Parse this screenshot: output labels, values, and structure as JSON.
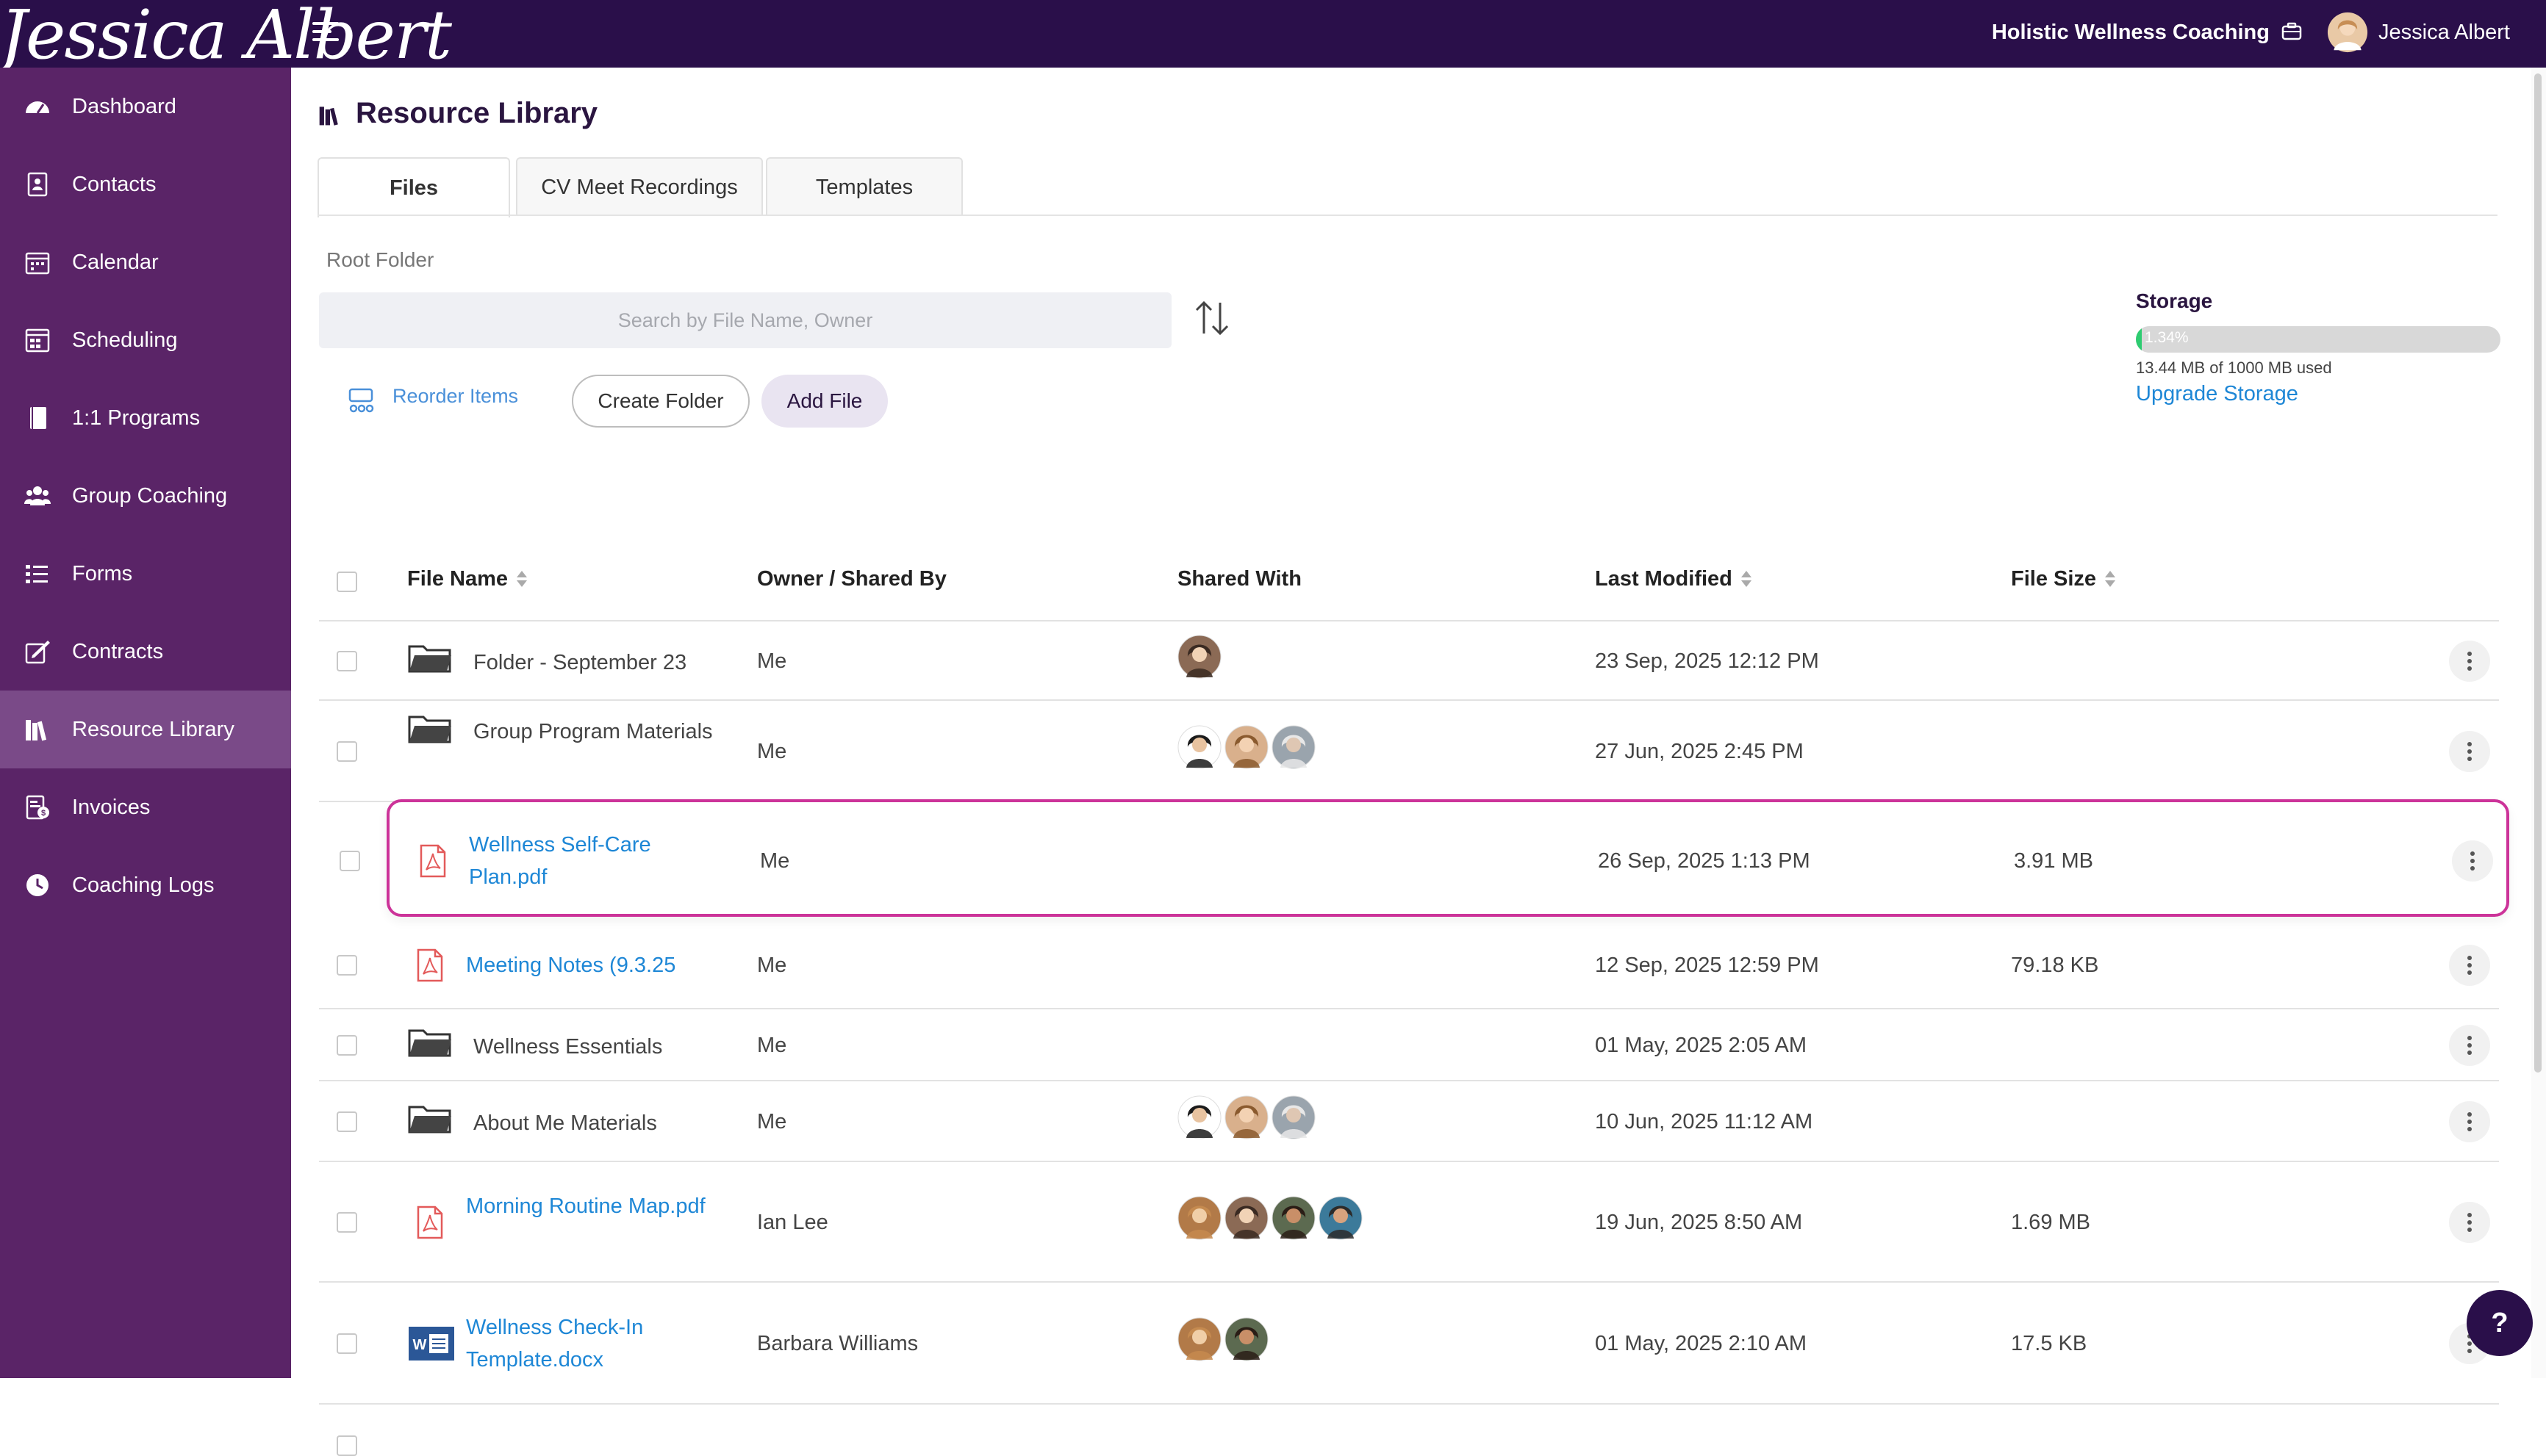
{
  "brand": {
    "name": "Jessica Albert"
  },
  "header": {
    "business": "Holistic Wellness Coaching",
    "user_name": "Jessica Albert"
  },
  "sidebar": {
    "items": [
      {
        "label": "Dashboard",
        "icon": "gauge-icon"
      },
      {
        "label": "Contacts",
        "icon": "contacts-icon"
      },
      {
        "label": "Calendar",
        "icon": "calendar-icon"
      },
      {
        "label": "Scheduling",
        "icon": "scheduling-icon"
      },
      {
        "label": "1:1 Programs",
        "icon": "book-icon"
      },
      {
        "label": "Group Coaching",
        "icon": "group-icon"
      },
      {
        "label": "Forms",
        "icon": "forms-icon"
      },
      {
        "label": "Contracts",
        "icon": "contract-icon"
      },
      {
        "label": "Resource Library",
        "icon": "library-icon",
        "active": true
      },
      {
        "label": "Invoices",
        "icon": "invoice-icon"
      },
      {
        "label": "Coaching Logs",
        "icon": "clock-icon"
      }
    ]
  },
  "page": {
    "title": "Resource Library"
  },
  "tabs": [
    {
      "label": "Files",
      "active": true
    },
    {
      "label": "CV Meet Recordings"
    },
    {
      "label": "Templates"
    }
  ],
  "breadcrumb": "Root Folder",
  "search": {
    "placeholder": "Search by File Name, Owner"
  },
  "toolbar": {
    "reorder_label": "Reorder Items",
    "create_folder_label": "Create Folder",
    "add_file_label": "Add File"
  },
  "storage": {
    "label": "Storage",
    "percent_label": "1.34%",
    "percent": 1.34,
    "used_text": "13.44 MB of 1000 MB used",
    "upgrade_label": "Upgrade Storage",
    "fill_color": "#2ecc71"
  },
  "table": {
    "headers": {
      "file_name": "File Name",
      "owner": "Owner / Shared By",
      "shared_with": "Shared With",
      "last_modified": "Last Modified",
      "file_size": "File Size"
    },
    "rows": [
      {
        "type": "folder",
        "name": "Folder - September 23",
        "owner": "Me",
        "shared": 1,
        "modified": "23 Sep, 2025 12:12 PM",
        "size": ""
      },
      {
        "type": "folder",
        "name": "Group Program Materials",
        "owner": "Me",
        "shared": 3,
        "modified": "27 Jun, 2025 2:45 PM",
        "size": ""
      },
      {
        "type": "pdf",
        "name": "Wellness Self-Care Plan.pdf",
        "owner": "Me",
        "shared": 0,
        "modified": "26 Sep, 2025 1:13 PM",
        "size": "3.91 MB",
        "highlight": true
      },
      {
        "type": "pdf",
        "name": "Meeting Notes (9.3.25",
        "owner": "Me",
        "shared": 0,
        "modified": "12 Sep, 2025 12:59 PM",
        "size": "79.18 KB"
      },
      {
        "type": "folder",
        "name": "Wellness Essentials",
        "owner": "Me",
        "shared": 0,
        "modified": "01 May, 2025 2:05 AM",
        "size": ""
      },
      {
        "type": "folder",
        "name": "About Me Materials",
        "owner": "Me",
        "shared": 3,
        "modified": "10 Jun, 2025 11:12 AM",
        "size": ""
      },
      {
        "type": "pdf",
        "name": "Morning Routine Map.pdf",
        "owner": "Ian Lee",
        "shared": 4,
        "modified": "19 Jun, 2025 8:50 AM",
        "size": "1.69 MB"
      },
      {
        "type": "doc",
        "name": "Wellness Check-In Template.docx",
        "owner": "Barbara Williams",
        "shared": 2,
        "modified": "01 May, 2025 2:10 AM",
        "size": "17.5 KB"
      }
    ]
  },
  "help_label": "?"
}
